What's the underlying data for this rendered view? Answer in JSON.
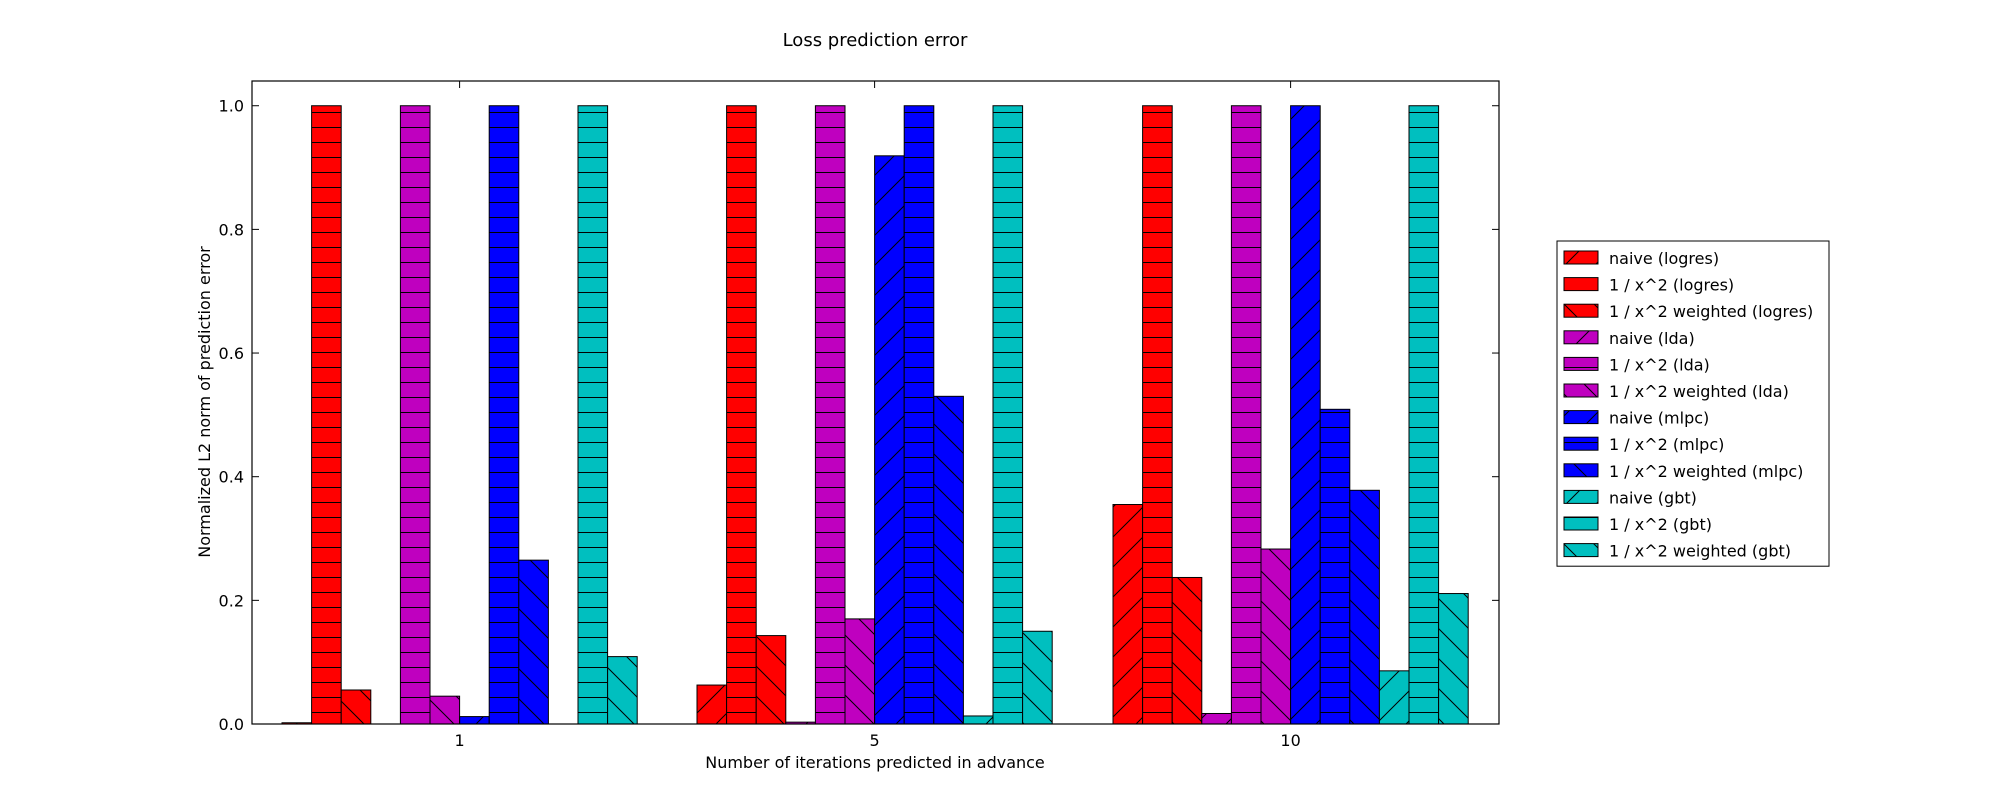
{
  "chart_data": {
    "type": "bar",
    "title": "Loss prediction error",
    "xlabel": "Number of iterations predicted in advance",
    "ylabel": "Normalized L2 norm of prediction error",
    "categories": [
      "1",
      "5",
      "10"
    ],
    "ylim": [
      0,
      1.04
    ],
    "yticks": [
      "0.0",
      "0.2",
      "0.4",
      "0.6",
      "0.8",
      "1.0"
    ],
    "grid": false,
    "legend_position": "right-outside",
    "series": [
      {
        "name": "naive (logres)",
        "color": "#ff0000",
        "hatch": "diagonal",
        "values": [
          0.002,
          0.063,
          0.355
        ]
      },
      {
        "name": "1 / x^2 (logres)",
        "color": "#ff0000",
        "hatch": "horizontal",
        "values": [
          1.0,
          1.0,
          1.0
        ]
      },
      {
        "name": "1 / x^2 weighted (logres)",
        "color": "#ff0000",
        "hatch": "backdiagonal",
        "values": [
          0.055,
          0.143,
          0.237
        ]
      },
      {
        "name": "naive (lda)",
        "color": "#bf00bf",
        "hatch": "diagonal",
        "values": [
          0.0,
          0.003,
          0.017
        ]
      },
      {
        "name": "1 / x^2 (lda)",
        "color": "#bf00bf",
        "hatch": "horizontal",
        "values": [
          1.0,
          1.0,
          1.0
        ]
      },
      {
        "name": "1 / x^2 weighted (lda)",
        "color": "#bf00bf",
        "hatch": "backdiagonal",
        "values": [
          0.045,
          0.17,
          0.283
        ]
      },
      {
        "name": "naive (mlpc)",
        "color": "#0000ff",
        "hatch": "diagonal",
        "values": [
          0.012,
          0.919,
          1.0
        ]
      },
      {
        "name": "1 / x^2 (mlpc)",
        "color": "#0000ff",
        "hatch": "horizontal",
        "values": [
          1.0,
          1.0,
          0.509
        ]
      },
      {
        "name": "1 / x^2 weighted (mlpc)",
        "color": "#0000ff",
        "hatch": "backdiagonal",
        "values": [
          0.265,
          0.53,
          0.378
        ]
      },
      {
        "name": "naive (gbt)",
        "color": "#00bfbf",
        "hatch": "diagonal",
        "values": [
          0.0,
          0.013,
          0.086
        ]
      },
      {
        "name": "1 / x^2 (gbt)",
        "color": "#00bfbf",
        "hatch": "horizontal",
        "values": [
          1.0,
          1.0,
          1.0
        ]
      },
      {
        "name": "1 / x^2 weighted (gbt)",
        "color": "#00bfbf",
        "hatch": "backdiagonal",
        "values": [
          0.109,
          0.15,
          0.211
        ]
      }
    ]
  }
}
